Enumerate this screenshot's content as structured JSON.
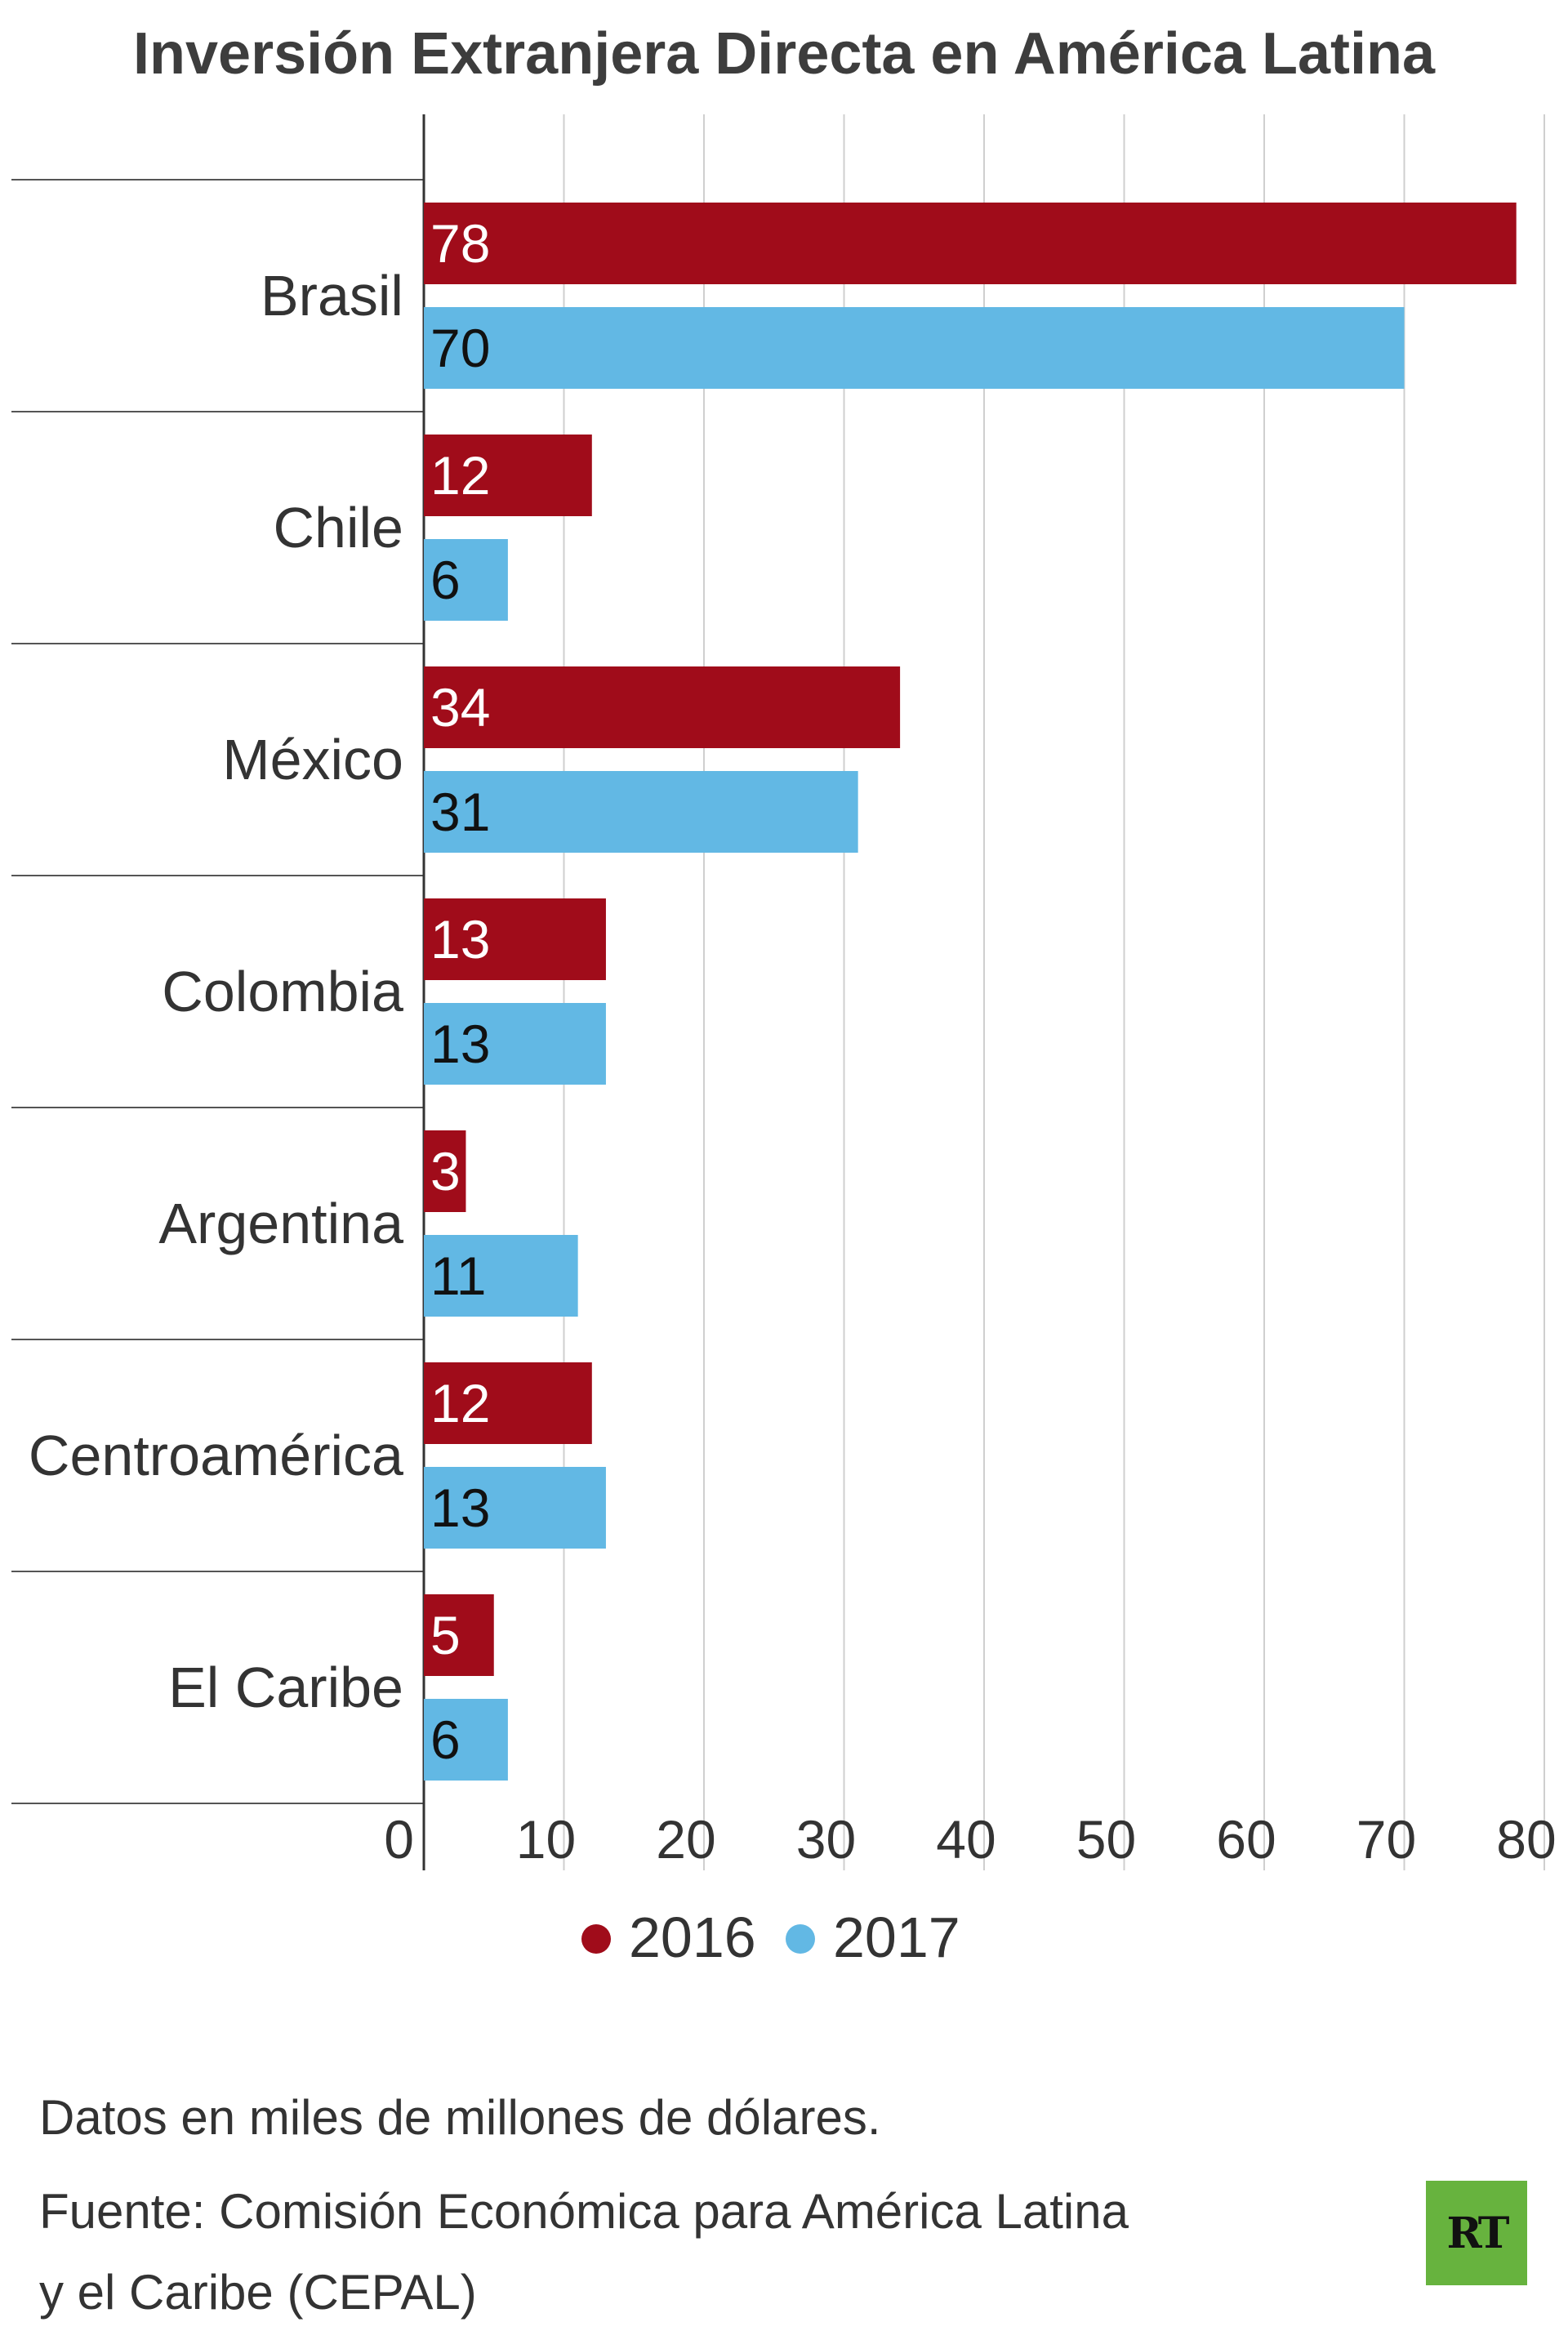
{
  "chart_data": {
    "type": "bar",
    "orientation": "horizontal",
    "title": "Inversión Extranjera Directa en América Latina",
    "categories": [
      "Brasil",
      "Chile",
      "México",
      "Colombia",
      "Argentina",
      "Centroamérica",
      "El Caribe"
    ],
    "series": [
      {
        "name": "2016",
        "color": "#a00c1a",
        "label_color": "#ffffff",
        "values": [
          78,
          12,
          34,
          13,
          3,
          12,
          5
        ]
      },
      {
        "name": "2017",
        "color": "#62b8e4",
        "label_color": "#111111",
        "values": [
          70,
          6,
          31,
          13,
          11,
          13,
          6
        ]
      }
    ],
    "xlim": [
      0,
      80
    ],
    "xticks": [
      0,
      10,
      20,
      30,
      40,
      50,
      60,
      70,
      80
    ],
    "grid": true,
    "legend": "bottom-center",
    "xlabel": "",
    "ylabel": ""
  },
  "notes": {
    "units": "Datos en miles de millones de dólares.",
    "source_line1": "Fuente: Comisión Económica para América Latina",
    "source_line2": "y el Caribe (CEPAL)"
  },
  "logo": {
    "text": "RT"
  }
}
